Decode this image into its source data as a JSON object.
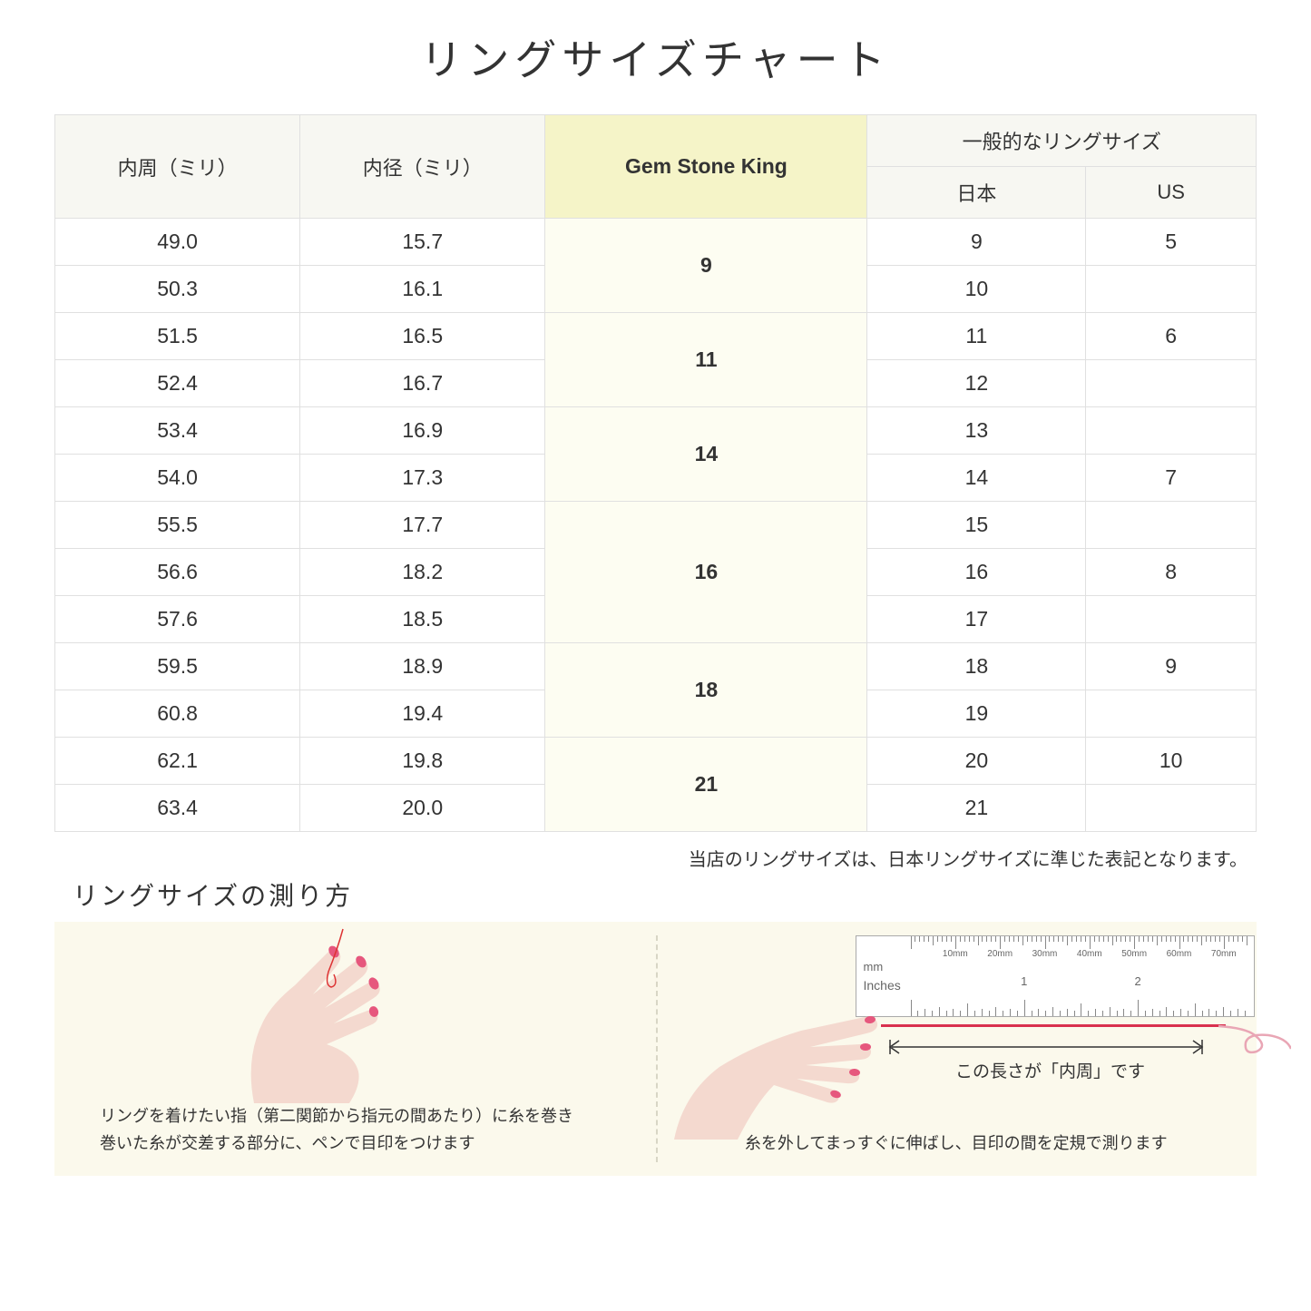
{
  "title": "リングサイズチャート",
  "table": {
    "headers": {
      "circumference": "内周（ミリ）",
      "diameter": "内径（ミリ）",
      "gsk": "Gem Stone King",
      "general": "一般的なリングサイズ",
      "japan": "日本",
      "us": "US"
    },
    "header_bg": "#f7f7f2",
    "gsk_header_bg": "#f5f4c8",
    "gsk_cell_bg": "#fdfdf2",
    "border_color": "#e0e0e0",
    "font_size": 23,
    "groups": [
      {
        "gsk": "9",
        "rows": [
          {
            "circ": "49.0",
            "dia": "15.7",
            "jp": "9",
            "us": "5"
          },
          {
            "circ": "50.3",
            "dia": "16.1",
            "jp": "10",
            "us": ""
          }
        ]
      },
      {
        "gsk": "11",
        "rows": [
          {
            "circ": "51.5",
            "dia": "16.5",
            "jp": "11",
            "us": "6"
          },
          {
            "circ": "52.4",
            "dia": "16.7",
            "jp": "12",
            "us": ""
          }
        ]
      },
      {
        "gsk": "14",
        "rows": [
          {
            "circ": "53.4",
            "dia": "16.9",
            "jp": "13",
            "us": ""
          },
          {
            "circ": "54.0",
            "dia": "17.3",
            "jp": "14",
            "us": "7"
          }
        ]
      },
      {
        "gsk": "16",
        "rows": [
          {
            "circ": "55.5",
            "dia": "17.7",
            "jp": "15",
            "us": ""
          },
          {
            "circ": "56.6",
            "dia": "18.2",
            "jp": "16",
            "us": "8"
          },
          {
            "circ": "57.6",
            "dia": "18.5",
            "jp": "17",
            "us": ""
          }
        ]
      },
      {
        "gsk": "18",
        "rows": [
          {
            "circ": "59.5",
            "dia": "18.9",
            "jp": "18",
            "us": "9"
          },
          {
            "circ": "60.8",
            "dia": "19.4",
            "jp": "19",
            "us": ""
          }
        ]
      },
      {
        "gsk": "21",
        "rows": [
          {
            "circ": "62.1",
            "dia": "19.8",
            "jp": "20",
            "us": "10"
          },
          {
            "circ": "63.4",
            "dia": "20.0",
            "jp": "21",
            "us": ""
          }
        ]
      }
    ]
  },
  "note": "当店のリングサイズは、日本リングサイズに準じた表記となります。",
  "howto": {
    "title": "リングサイズの測り方",
    "bg": "#fbf9ec",
    "left_caption_line1": "リングを着けたい指（第二関節から指元の間あたり）に糸を巻き",
    "left_caption_line2": "巻いた糸が交差する部分に、ペンで目印をつけます",
    "right_caption": "糸を外してまっすぐに伸ばし、目印の間を定規で測ります",
    "measure_label": "この長さが「内周」です",
    "ruler": {
      "mm_label": "mm",
      "inches_label": "Inches",
      "mm_marks": [
        "10mm",
        "20mm",
        "30mm",
        "40mm",
        "50mm",
        "60mm",
        "70mm"
      ],
      "inch_marks": [
        "1",
        "2"
      ]
    },
    "hand_fill": "#f4d9cf",
    "nail_fill": "#e6577d",
    "thread_color": "#d9304f"
  }
}
